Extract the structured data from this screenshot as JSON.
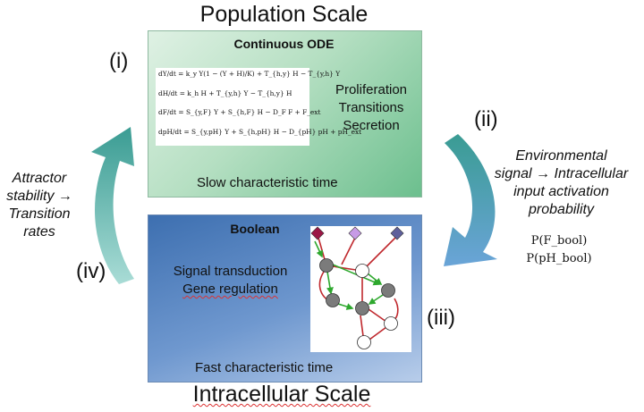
{
  "titles": {
    "top": "Population Scale",
    "bottom": "Intracellular Scale"
  },
  "roman": {
    "i": "(i)",
    "ii": "(ii)",
    "iii": "(iii)",
    "iv": "(iv)"
  },
  "ode_box": {
    "heading": "Continuous ODE",
    "lines": [
      "Proliferation",
      "Transitions",
      "Secretion"
    ],
    "footer": "Slow characteristic time",
    "equations": [
      "dY/dt = k_y Y(1 − (Y + H)/K) + T_{h,y} H − T_{y,h} Y",
      "dH/dt = k_h H + T_{y,h} Y − T_{h,y} H",
      "dF/dt = S_{y,F} Y + S_{h,F} H − D_F F + F_ext",
      "dpH/dt = S_{y,pH} Y + S_{h,pH} H − D_{pH} pH + pH_ext"
    ]
  },
  "boolean_box": {
    "heading": "Boolean",
    "lines": [
      "Signal transduction",
      "Gene regulation"
    ],
    "footer": "Fast characteristic time"
  },
  "right_text": {
    "lines": [
      "Environmental",
      "signal → Intracellular",
      "input activation",
      "probability"
    ],
    "math": [
      "P(F_bool)",
      "P(pH_bool)"
    ]
  },
  "left_text": {
    "lines": [
      "Attractor",
      "stability →",
      "Transition",
      "rates"
    ]
  },
  "colors": {
    "arrow_teal": "#3a9c93",
    "arrow_light": "#a9dcd6",
    "arrow_blue": "#6aa4d8",
    "node_gray": "#7b7b7b",
    "edge_red": "#c0282d",
    "edge_green": "#2ea82e",
    "diamond_red": "#9b1746",
    "diamond_lilac": "#c79be6",
    "diamond_indigo": "#5e5f9b"
  }
}
